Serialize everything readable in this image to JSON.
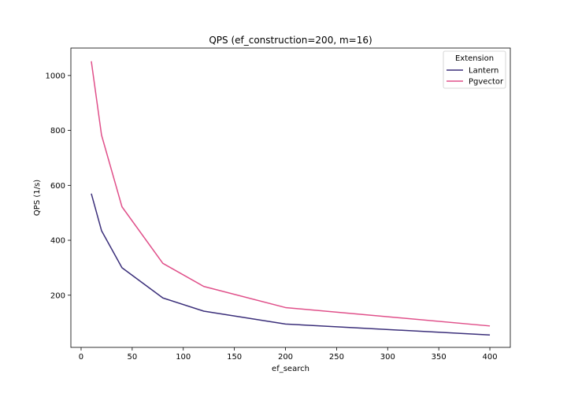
{
  "chart_data": {
    "type": "line",
    "title": "QPS (ef_construction=200, m=16)",
    "xlabel": "ef_search",
    "ylabel": "QPS (1/s)",
    "xlim": [
      -10,
      420
    ],
    "ylim": [
      10,
      1100
    ],
    "xticks": [
      0,
      50,
      100,
      150,
      200,
      250,
      300,
      350,
      400
    ],
    "yticks": [
      200,
      400,
      600,
      800,
      1000
    ],
    "grid": false,
    "legend": {
      "title": "Extension",
      "position": "top-right"
    },
    "series": [
      {
        "name": "Lantern",
        "color": "#3b2f7a",
        "x": [
          10,
          20,
          40,
          80,
          120,
          200,
          400
        ],
        "y": [
          570,
          435,
          300,
          190,
          142,
          95,
          55
        ]
      },
      {
        "name": "Pgvector",
        "color": "#e0508a",
        "x": [
          10,
          20,
          40,
          80,
          120,
          200,
          400
        ],
        "y": [
          1052,
          783,
          522,
          316,
          232,
          155,
          88
        ]
      }
    ]
  }
}
